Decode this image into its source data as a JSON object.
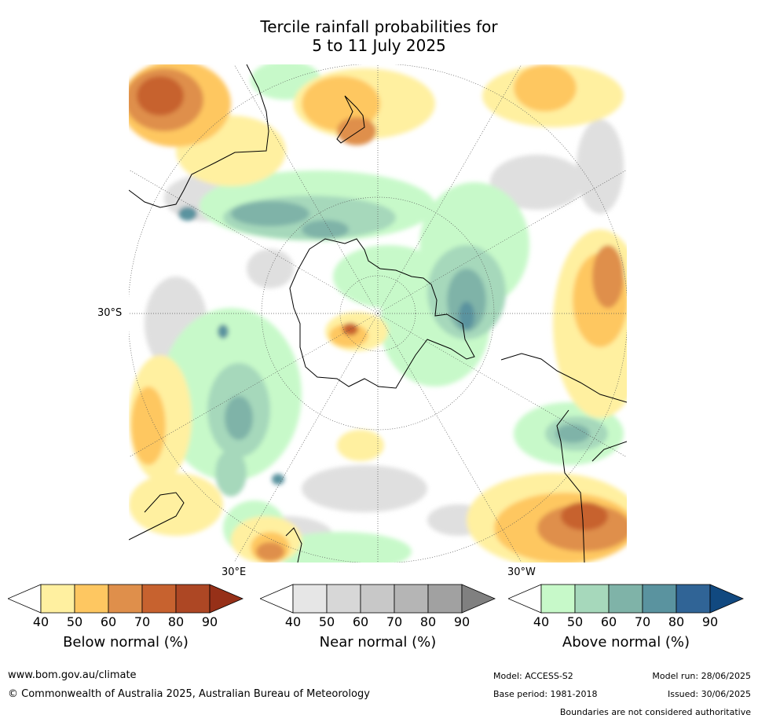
{
  "title": {
    "line1": "Tercile rainfall probabilities for",
    "line2": "5 to 11 July 2025"
  },
  "map": {
    "projection": "south-polar-stereographic",
    "graticule_labels": {
      "lat_30s": "30°S",
      "lon_30e": "30°E",
      "lon_30w": "30°W"
    }
  },
  "legends": [
    {
      "id": "below",
      "label": "Below normal (%)",
      "ticks": [
        "40",
        "50",
        "60",
        "70",
        "80",
        "90"
      ],
      "colors": [
        "#ffffff",
        "#fff0a0",
        "#fec761",
        "#df8f4b",
        "#c7622f",
        "#ad4724",
        "#963018"
      ]
    },
    {
      "id": "near",
      "label": "Near normal (%)",
      "ticks": [
        "40",
        "50",
        "60",
        "70",
        "80",
        "90"
      ],
      "colors": [
        "#ffffff",
        "#e6e6e6",
        "#d7d7d7",
        "#c8c8c8",
        "#b5b5b5",
        "#a1a1a1",
        "#808080"
      ]
    },
    {
      "id": "above",
      "label": "Above normal (%)",
      "ticks": [
        "40",
        "50",
        "60",
        "70",
        "80",
        "90"
      ],
      "colors": [
        "#ffffff",
        "#c7f9c9",
        "#a6d8bb",
        "#7fb3a8",
        "#5a939f",
        "#306496",
        "#114980"
      ]
    }
  ],
  "footer": {
    "website": "www.bom.gov.au/climate",
    "copyright": "© Commonwealth of Australia 2025, Australian Bureau of Meteorology",
    "model": "Model: ACCESS-S2",
    "base_period": "Base period: 1981-2018",
    "model_run": "Model run: 28/06/2025",
    "issued": "Issued: 30/06/2025",
    "disclaimer": "Boundaries are not considered authoritative"
  }
}
